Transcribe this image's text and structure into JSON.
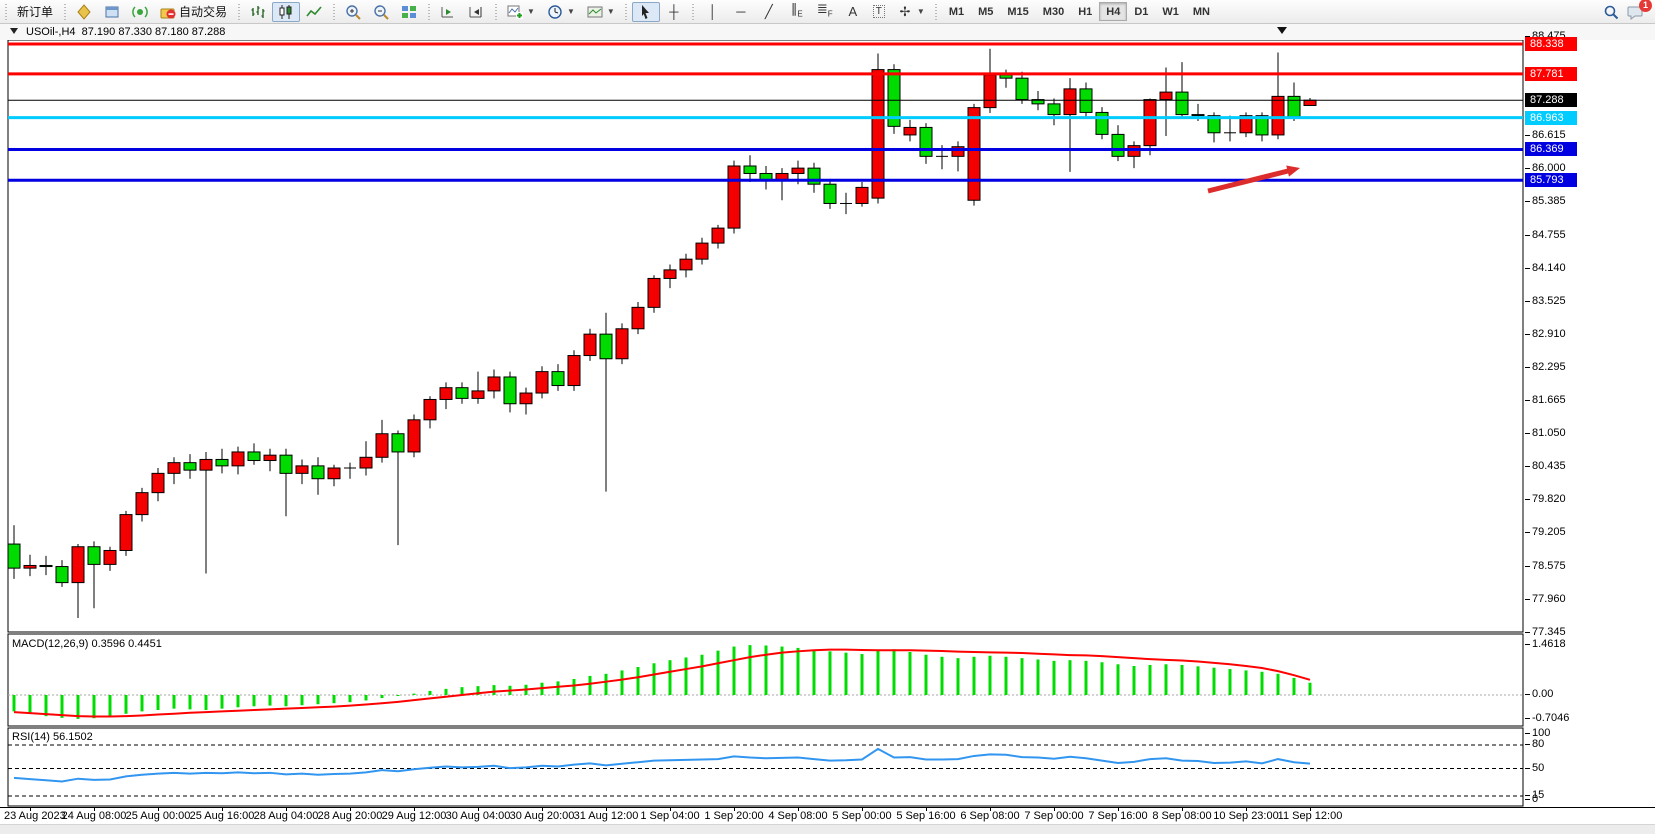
{
  "toolbar": {
    "new_order_label": "新订单",
    "autotrade_label": "自动交易",
    "timeframes": [
      "M1",
      "M5",
      "M15",
      "M30",
      "H1",
      "H4",
      "D1",
      "W1",
      "MN"
    ],
    "active_timeframe": "H4",
    "chat_badge_count": "1",
    "icon_names": [
      "new-order",
      "new-chart",
      "market-watch",
      "signal",
      "autotrading",
      "bar-chart",
      "candlestick-chart",
      "line-chart",
      "zoom-in",
      "zoom-out",
      "tile-windows",
      "chart-forward",
      "chart-back",
      "indicators-add",
      "periods-clock",
      "templates",
      "cursor",
      "crosshair",
      "vertical-line",
      "horizontal-line",
      "trend-line",
      "equidistant-channel",
      "fibonacci",
      "text",
      "text-label",
      "arrows",
      "search",
      "chat"
    ]
  },
  "chart_header": {
    "symbol_period": "USOil-,H4",
    "ohlc_text": "87.190 87.330 87.180 87.288"
  },
  "chart_data": {
    "type": "candlestick",
    "symbol": "USOil-",
    "period": "H4",
    "current_price": "87.288",
    "bull_color": "#f40000",
    "bear_color": "#00dc00",
    "bars": [
      [
        79.0,
        79.35,
        78.35,
        78.55
      ],
      [
        78.55,
        78.8,
        78.4,
        78.6
      ],
      [
        78.6,
        78.78,
        78.42,
        78.58
      ],
      [
        78.58,
        78.7,
        78.2,
        78.28
      ],
      [
        78.28,
        79.0,
        77.62,
        78.95
      ],
      [
        78.95,
        79.05,
        77.8,
        78.62
      ],
      [
        78.62,
        78.95,
        78.5,
        78.88
      ],
      [
        78.88,
        79.62,
        78.78,
        79.55
      ],
      [
        79.55,
        80.05,
        79.42,
        79.96
      ],
      [
        79.96,
        80.42,
        79.8,
        80.32
      ],
      [
        80.32,
        80.62,
        80.12,
        80.52
      ],
      [
        80.52,
        80.68,
        80.22,
        80.38
      ],
      [
        80.38,
        80.72,
        78.45,
        80.58
      ],
      [
        80.58,
        80.78,
        80.32,
        80.46
      ],
      [
        80.46,
        80.82,
        80.3,
        80.72
      ],
      [
        80.72,
        80.88,
        80.48,
        80.56
      ],
      [
        80.56,
        80.78,
        80.36,
        80.66
      ],
      [
        80.66,
        80.78,
        79.52,
        80.32
      ],
      [
        80.32,
        80.58,
        80.12,
        80.46
      ],
      [
        80.46,
        80.62,
        79.92,
        80.22
      ],
      [
        80.22,
        80.48,
        80.08,
        80.42
      ],
      [
        80.42,
        80.52,
        80.22,
        80.42
      ],
      [
        80.42,
        80.92,
        80.28,
        80.62
      ],
      [
        80.62,
        81.32,
        80.52,
        81.06
      ],
      [
        81.06,
        81.12,
        78.98,
        80.72
      ],
      [
        80.72,
        81.42,
        80.62,
        81.32
      ],
      [
        81.32,
        81.76,
        81.16,
        81.7
      ],
      [
        81.7,
        82.02,
        81.52,
        81.92
      ],
      [
        81.92,
        82.02,
        81.62,
        81.72
      ],
      [
        81.72,
        82.22,
        81.62,
        81.86
      ],
      [
        81.86,
        82.26,
        81.72,
        82.12
      ],
      [
        82.12,
        82.22,
        81.46,
        81.62
      ],
      [
        81.62,
        81.92,
        81.42,
        81.82
      ],
      [
        81.82,
        82.32,
        81.72,
        82.22
      ],
      [
        82.22,
        82.36,
        81.86,
        81.96
      ],
      [
        81.96,
        82.62,
        81.86,
        82.52
      ],
      [
        82.52,
        83.02,
        82.42,
        82.92
      ],
      [
        82.92,
        83.32,
        79.98,
        82.46
      ],
      [
        82.46,
        83.12,
        82.36,
        83.02
      ],
      [
        83.02,
        83.52,
        82.92,
        83.42
      ],
      [
        83.42,
        84.02,
        83.32,
        83.96
      ],
      [
        83.96,
        84.22,
        83.78,
        84.12
      ],
      [
        84.12,
        84.42,
        83.98,
        84.32
      ],
      [
        84.32,
        84.72,
        84.22,
        84.62
      ],
      [
        84.62,
        84.96,
        84.52,
        84.9
      ],
      [
        84.9,
        86.16,
        84.8,
        86.06
      ],
      [
        86.06,
        86.26,
        85.76,
        85.92
      ],
      [
        85.92,
        86.06,
        85.62,
        85.78
      ],
      [
        85.78,
        86.02,
        85.42,
        85.92
      ],
      [
        85.92,
        86.16,
        85.72,
        86.02
      ],
      [
        86.02,
        86.12,
        85.56,
        85.72
      ],
      [
        85.72,
        85.82,
        85.26,
        85.36
      ],
      [
        85.36,
        85.56,
        85.16,
        85.36
      ],
      [
        85.36,
        85.76,
        85.3,
        85.66
      ],
      [
        85.46,
        88.16,
        85.36,
        87.86
      ],
      [
        87.86,
        87.96,
        86.66,
        86.8
      ],
      [
        86.64,
        86.92,
        86.52,
        86.78
      ],
      [
        86.78,
        86.86,
        86.1,
        86.24
      ],
      [
        86.24,
        86.45,
        86.0,
        86.24
      ],
      [
        86.24,
        86.52,
        85.96,
        86.42
      ],
      [
        85.42,
        87.22,
        85.32,
        87.15
      ],
      [
        87.15,
        88.25,
        87.05,
        87.76
      ],
      [
        87.76,
        87.86,
        87.52,
        87.7
      ],
      [
        87.7,
        87.82,
        87.22,
        87.3
      ],
      [
        87.3,
        87.46,
        87.1,
        87.22
      ],
      [
        87.22,
        87.32,
        86.82,
        87.02
      ],
      [
        87.02,
        87.7,
        85.95,
        87.5
      ],
      [
        87.5,
        87.62,
        86.95,
        87.06
      ],
      [
        87.06,
        87.16,
        86.56,
        86.65
      ],
      [
        86.65,
        86.82,
        86.15,
        86.24
      ],
      [
        86.24,
        86.52,
        86.02,
        86.44
      ],
      [
        86.44,
        87.32,
        86.26,
        87.3
      ],
      [
        87.3,
        87.9,
        86.62,
        87.44
      ],
      [
        87.44,
        88.0,
        86.98,
        87.02
      ],
      [
        87.02,
        87.22,
        86.9,
        87.0
      ],
      [
        87.0,
        87.06,
        86.5,
        86.68
      ],
      [
        86.68,
        87.0,
        86.52,
        86.68
      ],
      [
        86.68,
        87.06,
        86.6,
        87.0
      ],
      [
        87.0,
        87.06,
        86.52,
        86.64
      ],
      [
        86.64,
        88.18,
        86.56,
        87.36
      ],
      [
        87.36,
        87.62,
        86.9,
        86.98
      ],
      [
        87.19,
        87.33,
        87.18,
        87.288
      ]
    ],
    "hlines": [
      {
        "price": 88.338,
        "label": "88.338",
        "color": "#ff0000",
        "width": 3
      },
      {
        "price": 87.781,
        "label": "87.781",
        "color": "#ff0000",
        "width": 3
      },
      {
        "price": 87.288,
        "label": "87.288",
        "color": "#000000",
        "width": 1
      },
      {
        "price": 86.963,
        "label": "86.963",
        "color": "#00ccff",
        "width": 3
      },
      {
        "price": 86.369,
        "label": "86.369",
        "color": "#0000e0",
        "width": 3
      },
      {
        "price": 85.793,
        "label": "85.793",
        "color": "#0000e0",
        "width": 3
      }
    ],
    "price_ticks": [
      "88.475",
      "86.615",
      "86.000",
      "85.385",
      "84.755",
      "84.140",
      "83.525",
      "82.910",
      "82.295",
      "81.665",
      "81.050",
      "80.435",
      "79.820",
      "79.205",
      "78.575",
      "77.960",
      "77.345"
    ],
    "time_labels": [
      "23 Aug 2023",
      "24 Aug 08:00",
      "25 Aug 00:00",
      "25 Aug 16:00",
      "28 Aug 04:00",
      "28 Aug 20:00",
      "29 Aug 12:00",
      "30 Aug 04:00",
      "30 Aug 20:00",
      "31 Aug 12:00",
      "1 Sep 04:00",
      "1 Sep 20:00",
      "4 Sep 08:00",
      "5 Sep 00:00",
      "5 Sep 16:00",
      "6 Sep 08:00",
      "7 Sep 00:00",
      "7 Sep 16:00",
      "8 Sep 08:00",
      "10 Sep 23:00",
      "11 Sep 12:00"
    ],
    "arrow_annotation": {
      "from": [
        1208,
        191
      ],
      "to": [
        1300,
        168
      ],
      "color": "#dd2c2c"
    },
    "macd": {
      "title": "MACD(12,26,9) 0.3596 0.4451",
      "axis_labels": [
        "1.4618",
        "0.00",
        "-0.7046"
      ],
      "hist_color": "#00dc00",
      "signal_color": "#ff0000",
      "hist": [
        -0.48,
        -0.55,
        -0.62,
        -0.67,
        -0.7,
        -0.68,
        -0.62,
        -0.55,
        -0.48,
        -0.44,
        -0.4,
        -0.42,
        -0.44,
        -0.4,
        -0.36,
        -0.33,
        -0.31,
        -0.33,
        -0.3,
        -0.27,
        -0.24,
        -0.21,
        -0.16,
        -0.09,
        -0.03,
        0.04,
        0.12,
        0.18,
        0.23,
        0.26,
        0.29,
        0.27,
        0.3,
        0.36,
        0.4,
        0.47,
        0.56,
        0.62,
        0.72,
        0.82,
        0.93,
        1.02,
        1.1,
        1.18,
        1.3,
        1.42,
        1.4618,
        1.45,
        1.42,
        1.38,
        1.33,
        1.28,
        1.24,
        1.2,
        1.3,
        1.34,
        1.26,
        1.18,
        1.12,
        1.08,
        1.12,
        1.15,
        1.12,
        1.08,
        1.04,
        1.0,
        1.02,
        1.0,
        0.96,
        0.9,
        0.85,
        0.88,
        0.9,
        0.88,
        0.84,
        0.8,
        0.76,
        0.72,
        0.68,
        0.62,
        0.5,
        0.36
      ],
      "signal": [
        -0.5,
        -0.53,
        -0.56,
        -0.59,
        -0.62,
        -0.63,
        -0.63,
        -0.62,
        -0.6,
        -0.57,
        -0.55,
        -0.52,
        -0.5,
        -0.48,
        -0.46,
        -0.44,
        -0.42,
        -0.4,
        -0.38,
        -0.36,
        -0.34,
        -0.31,
        -0.28,
        -0.24,
        -0.2,
        -0.15,
        -0.1,
        -0.05,
        0.0,
        0.05,
        0.1,
        0.13,
        0.16,
        0.2,
        0.24,
        0.28,
        0.33,
        0.39,
        0.45,
        0.52,
        0.6,
        0.68,
        0.76,
        0.84,
        0.93,
        1.02,
        1.11,
        1.18,
        1.24,
        1.28,
        1.31,
        1.33,
        1.33,
        1.32,
        1.31,
        1.31,
        1.31,
        1.3,
        1.29,
        1.27,
        1.26,
        1.25,
        1.24,
        1.23,
        1.21,
        1.19,
        1.17,
        1.16,
        1.14,
        1.11,
        1.08,
        1.05,
        1.03,
        1.01,
        0.98,
        0.94,
        0.9,
        0.85,
        0.79,
        0.7,
        0.58,
        0.4451
      ]
    },
    "rsi": {
      "title": "RSI(14) 56.1502",
      "axis_labels": [
        "100",
        "80",
        "50",
        "15",
        "0"
      ],
      "levels": [
        80,
        50,
        15
      ],
      "line_color": "#3296f0",
      "series": [
        38,
        36.5,
        35,
        33.5,
        37,
        35.5,
        36,
        40,
        42,
        43.5,
        44.5,
        43.5,
        44.5,
        44,
        45,
        44,
        44.5,
        42.5,
        43.5,
        42,
        43,
        43.5,
        45,
        48,
        46.5,
        49,
        51,
        52.5,
        51.5,
        52,
        53.5,
        50.5,
        51.5,
        53.5,
        52.5,
        55,
        56.5,
        54,
        56,
        58,
        60,
        60.5,
        61,
        61.5,
        62,
        65.5,
        64,
        63,
        63.5,
        64,
        62,
        60,
        60.5,
        61.5,
        75,
        64,
        64.5,
        61.5,
        61.5,
        62,
        66,
        68,
        67.5,
        64.5,
        64,
        62.5,
        65,
        63,
        60,
        57,
        58.5,
        62,
        63,
        60,
        59.5,
        57,
        57.5,
        59,
        56.5,
        62,
        58,
        56.15
      ]
    }
  }
}
